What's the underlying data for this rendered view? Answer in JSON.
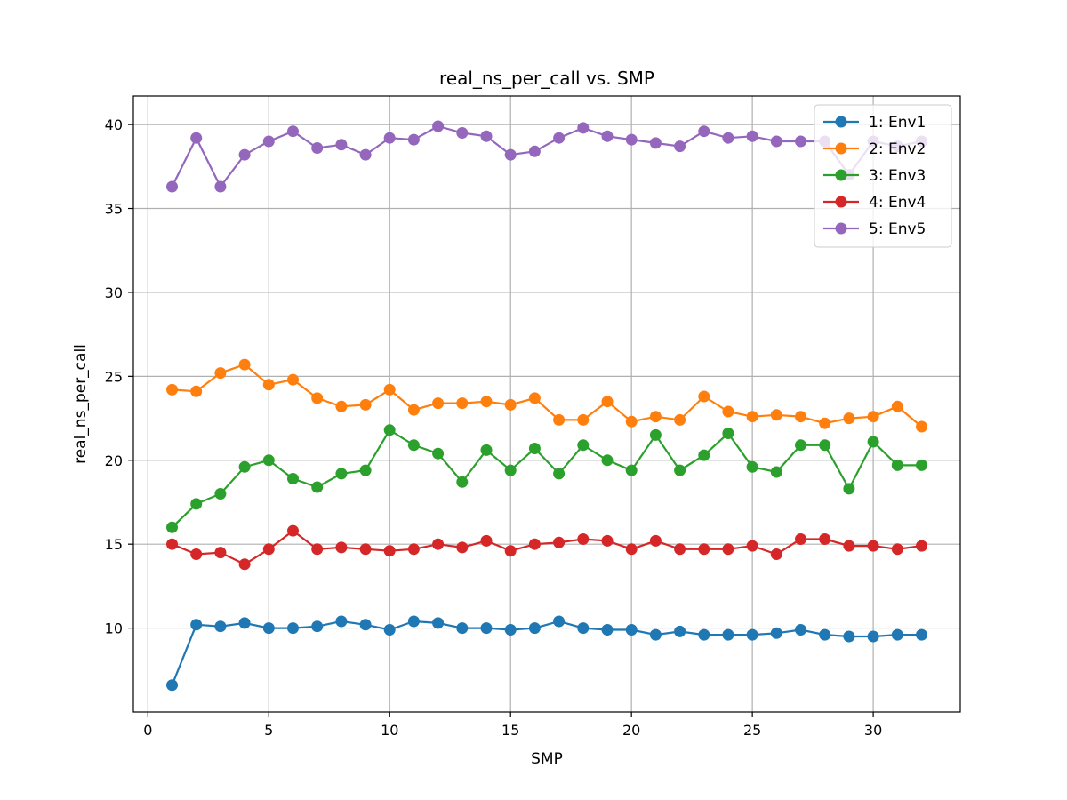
{
  "chart_data": {
    "type": "line",
    "title": "real_ns_per_call vs. SMP",
    "xlabel": "SMP",
    "ylabel": "real_ns_per_call",
    "xlim": [
      -0.6,
      33.6
    ],
    "ylim": [
      5.0,
      41.7
    ],
    "xticks": [
      0,
      5,
      10,
      15,
      20,
      25,
      30
    ],
    "yticks": [
      10,
      15,
      20,
      25,
      30,
      35,
      40
    ],
    "grid": true,
    "legend_position": "top-right",
    "x": [
      1,
      2,
      3,
      4,
      5,
      6,
      7,
      8,
      9,
      10,
      11,
      12,
      13,
      14,
      15,
      16,
      17,
      18,
      19,
      20,
      21,
      22,
      23,
      24,
      25,
      26,
      27,
      28,
      29,
      30,
      31,
      32
    ],
    "series": [
      {
        "name": "1: Env1",
        "color": "#1f77b4",
        "values": [
          6.6,
          10.2,
          10.1,
          10.3,
          10.0,
          10.0,
          10.1,
          10.4,
          10.2,
          9.9,
          10.4,
          10.3,
          10.0,
          10.0,
          9.9,
          10.0,
          10.4,
          10.0,
          9.9,
          9.9,
          9.6,
          9.8,
          9.6,
          9.6,
          9.6,
          9.7,
          9.9,
          9.6,
          9.5,
          9.5,
          9.6,
          9.6
        ]
      },
      {
        "name": "2: Env2",
        "color": "#ff7f0e",
        "values": [
          24.2,
          24.1,
          25.2,
          25.7,
          24.5,
          24.8,
          23.7,
          23.2,
          23.3,
          24.2,
          23.0,
          23.4,
          23.4,
          23.5,
          23.3,
          23.7,
          22.4,
          22.4,
          23.5,
          22.3,
          22.6,
          22.4,
          23.8,
          22.9,
          22.6,
          22.7,
          22.6,
          22.2,
          22.5,
          22.6,
          23.2,
          22.0
        ]
      },
      {
        "name": "3: Env3",
        "color": "#2ca02c",
        "values": [
          16.0,
          17.4,
          18.0,
          19.6,
          20.0,
          18.9,
          18.4,
          19.2,
          19.4,
          21.8,
          20.9,
          20.4,
          18.7,
          20.6,
          19.4,
          20.7,
          19.2,
          20.9,
          20.0,
          19.4,
          21.5,
          19.4,
          20.3,
          21.6,
          19.6,
          19.3,
          20.9,
          20.9,
          18.3,
          21.1,
          19.7,
          19.7
        ]
      },
      {
        "name": "4: Env4",
        "color": "#d62728",
        "values": [
          15.0,
          14.4,
          14.5,
          13.8,
          14.7,
          15.8,
          14.7,
          14.8,
          14.7,
          14.6,
          14.7,
          15.0,
          14.8,
          15.2,
          14.6,
          15.0,
          15.1,
          15.3,
          15.2,
          14.7,
          15.2,
          14.7,
          14.7,
          14.7,
          14.9,
          14.4,
          15.3,
          15.3,
          14.9,
          14.9,
          14.7,
          14.9
        ]
      },
      {
        "name": "5: Env5",
        "color": "#9467bd",
        "values": [
          36.3,
          39.2,
          36.3,
          38.2,
          39.0,
          39.6,
          38.6,
          38.8,
          38.2,
          39.2,
          39.1,
          39.9,
          39.5,
          39.3,
          38.2,
          38.4,
          39.2,
          39.8,
          39.3,
          39.1,
          38.9,
          38.7,
          39.6,
          39.2,
          39.3,
          39.0,
          39.0,
          39.0,
          37.0,
          39.0,
          38.7,
          39.0
        ]
      }
    ]
  }
}
